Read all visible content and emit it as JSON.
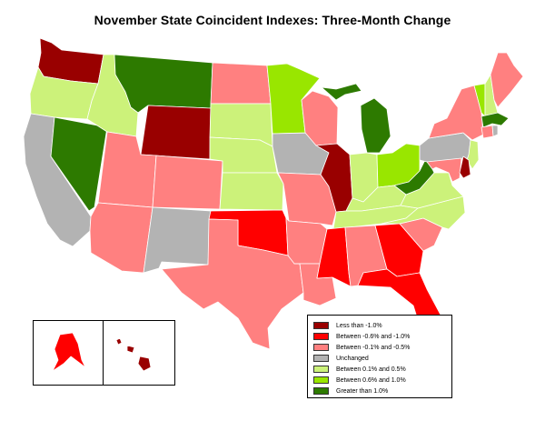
{
  "title": "November State Coincident Indexes: Three-Month Change",
  "colors": {
    "lt_neg1": "#990000",
    "neg06_neg1": "#ff0000",
    "neg01_neg05": "#ff8080",
    "unchanged": "#b3b3b3",
    "p01_05": "#ccf27a",
    "p06_1": "#99e600",
    "gt_1": "#2d7a00"
  },
  "legend": [
    {
      "key": "lt_neg1",
      "label": "Less than -1.0%"
    },
    {
      "key": "neg06_neg1",
      "label": "Between -0.6% and -1.0%"
    },
    {
      "key": "neg01_neg05",
      "label": "Between -0.1% and -0.5%"
    },
    {
      "key": "unchanged",
      "label": "Unchanged"
    },
    {
      "key": "p01_05",
      "label": "Between 0.1% and 0.5%"
    },
    {
      "key": "p06_1",
      "label": "Between 0.6% and 1.0%"
    },
    {
      "key": "gt_1",
      "label": "Greater than 1.0%"
    }
  ],
  "state_categories": {
    "WA": "lt_neg1",
    "OR": "p01_05",
    "CA": "unchanged",
    "NV": "gt_1",
    "ID": "p01_05",
    "MT": "gt_1",
    "WY": "lt_neg1",
    "UT": "neg01_neg05",
    "AZ": "neg01_neg05",
    "CO": "neg01_neg05",
    "NM": "unchanged",
    "ND": "neg01_neg05",
    "SD": "p01_05",
    "NE": "p01_05",
    "KS": "p01_05",
    "OK": "neg06_neg1",
    "TX": "neg01_neg05",
    "MN": "p06_1",
    "IA": "unchanged",
    "MO": "neg01_neg05",
    "AR": "neg01_neg05",
    "LA": "neg01_neg05",
    "WI": "neg01_neg05",
    "IL": "lt_neg1",
    "MI": "gt_1",
    "IN": "p01_05",
    "OH": "p06_1",
    "KY": "p01_05",
    "TN": "p01_05",
    "MS": "neg06_neg1",
    "AL": "neg01_neg05",
    "GA": "neg06_neg1",
    "FL": "neg06_neg1",
    "SC": "neg01_neg05",
    "NC": "p01_05",
    "VA": "p01_05",
    "WV": "gt_1",
    "PA": "unchanged",
    "NY": "neg01_neg05",
    "NJ": "p01_05",
    "DE": "lt_neg1",
    "MD": "neg01_neg05",
    "VT": "p06_1",
    "NH": "p01_05",
    "ME": "neg01_neg05",
    "MA": "gt_1",
    "CT": "neg01_neg05",
    "RI": "unchanged",
    "AK": "neg06_neg1",
    "HI": "lt_neg1"
  }
}
